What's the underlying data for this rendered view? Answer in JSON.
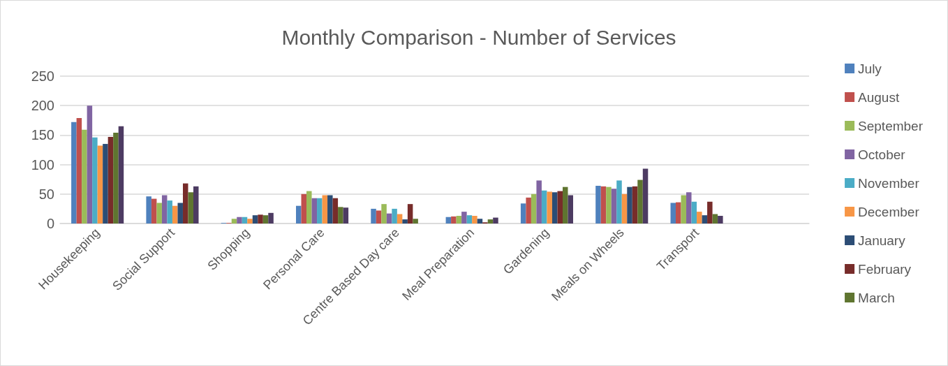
{
  "chart_data": {
    "type": "bar",
    "title": "Monthly Comparison - Number of Services",
    "categories": [
      "Housekeeping",
      "Social Support",
      "Shopping",
      "Personal Care",
      "Centre Based Day care",
      "Meal Preparation",
      "Gardening",
      "Meals on Wheels",
      "Transport",
      null
    ],
    "ylim": [
      0,
      250
    ],
    "yticks": [
      0,
      50,
      100,
      150,
      200,
      250
    ],
    "grid": "y",
    "legend": "right",
    "series": [
      {
        "name": "July",
        "color": "#4f81bd",
        "values": [
          172,
          46,
          1,
          30,
          25,
          11,
          34,
          64,
          35,
          null
        ]
      },
      {
        "name": "August",
        "color": "#c0504d",
        "values": [
          179,
          42,
          1,
          50,
          22,
          12,
          44,
          63,
          36,
          null
        ]
      },
      {
        "name": "September",
        "color": "#9bbb59",
        "values": [
          159,
          35,
          8,
          55,
          33,
          13,
          50,
          62,
          48,
          null
        ]
      },
      {
        "name": "October",
        "color": "#8064a2",
        "values": [
          200,
          48,
          11,
          43,
          17,
          20,
          73,
          59,
          53,
          null
        ]
      },
      {
        "name": "November",
        "color": "#4bacc6",
        "values": [
          146,
          39,
          11,
          43,
          25,
          14,
          56,
          73,
          37,
          null
        ]
      },
      {
        "name": "December",
        "color": "#f79646",
        "values": [
          132,
          30,
          8,
          48,
          16,
          13,
          54,
          50,
          20,
          null
        ]
      },
      {
        "name": "January",
        "color": "#2c4d75",
        "values": [
          135,
          35,
          14,
          48,
          7,
          8,
          53,
          62,
          14,
          null
        ]
      },
      {
        "name": "February",
        "color": "#772c2a",
        "values": [
          147,
          68,
          15,
          43,
          33,
          2,
          55,
          63,
          37,
          null
        ]
      },
      {
        "name": "March",
        "color": "#5f7530",
        "values": [
          154,
          53,
          14,
          28,
          8,
          7,
          62,
          74,
          16,
          null
        ]
      },
      {
        "color": "#4d3b62",
        "values": [
          165,
          63,
          18,
          27,
          null,
          10,
          48,
          93,
          13,
          null
        ]
      }
    ]
  }
}
